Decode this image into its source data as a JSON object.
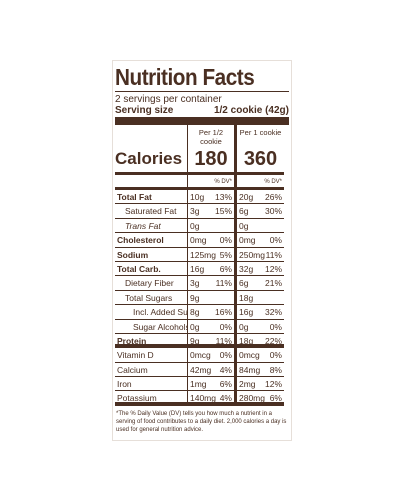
{
  "title": "Nutrition Facts",
  "servings": "2 servings per container",
  "serving_size_label": "Serving size",
  "serving_size": "1/2 cookie (42g)",
  "columns": [
    "Per 1/2 cookie",
    "Per 1 cookie"
  ],
  "calories_label": "Calories",
  "calories": [
    180,
    360
  ],
  "dv_header": "% DV*",
  "sections": [
    [
      {
        "name": "Total Fat",
        "indent": 0,
        "bold": true,
        "cells": [
          [
            "10g",
            "13%"
          ],
          [
            "20g",
            "26%"
          ]
        ]
      },
      {
        "name": "Saturated Fat",
        "indent": 1,
        "bold": false,
        "cells": [
          [
            "3g",
            "15%"
          ],
          [
            "6g",
            "30%"
          ]
        ]
      },
      {
        "name": "Trans Fat",
        "indent": 1,
        "bold": false,
        "italic": true,
        "cells": [
          [
            "0g",
            null
          ],
          [
            "0g",
            null
          ]
        ]
      },
      {
        "name": "Cholesterol",
        "indent": 0,
        "bold": true,
        "cells": [
          [
            "0mg",
            "0%"
          ],
          [
            "0mg",
            "0%"
          ]
        ]
      },
      {
        "name": "Sodium",
        "indent": 0,
        "bold": true,
        "cells": [
          [
            "125mg",
            "5%"
          ],
          [
            "250mg",
            "11%"
          ]
        ]
      },
      {
        "name": "Total Carb.",
        "indent": 0,
        "bold": true,
        "cells": [
          [
            "16g",
            "6%"
          ],
          [
            "32g",
            "12%"
          ]
        ]
      },
      {
        "name": "Dietary Fiber",
        "indent": 1,
        "bold": false,
        "cells": [
          [
            "3g",
            "11%"
          ],
          [
            "6g",
            "21%"
          ]
        ]
      },
      {
        "name": "Total Sugars",
        "indent": 1,
        "bold": false,
        "cells": [
          [
            "9g",
            null
          ],
          [
            "18g",
            null
          ]
        ]
      },
      {
        "name": "Incl. Added Sugars",
        "indent": 2,
        "bold": false,
        "cells": [
          [
            "8g",
            "16%"
          ],
          [
            "16g",
            "32%"
          ]
        ]
      },
      {
        "name": "Sugar Alcohols",
        "indent": 2,
        "bold": false,
        "cells": [
          [
            "0g",
            "0%"
          ],
          [
            "0g",
            "0%"
          ]
        ]
      },
      {
        "name": "Protein",
        "indent": 0,
        "bold": true,
        "cells": [
          [
            "9g",
            "11%"
          ],
          [
            "18g",
            "22%"
          ]
        ]
      }
    ],
    [
      {
        "name": "Vitamin D",
        "indent": 0,
        "bold": false,
        "cells": [
          [
            "0mcg",
            "0%"
          ],
          [
            "0mcg",
            "0%"
          ]
        ]
      },
      {
        "name": "Calcium",
        "indent": 0,
        "bold": false,
        "cells": [
          [
            "42mg",
            "4%"
          ],
          [
            "84mg",
            "8%"
          ]
        ]
      },
      {
        "name": "Iron",
        "indent": 0,
        "bold": false,
        "cells": [
          [
            "1mg",
            "6%"
          ],
          [
            "2mg",
            "12%"
          ]
        ]
      },
      {
        "name": "Potassium",
        "indent": 0,
        "bold": false,
        "cells": [
          [
            "140mg",
            "4%"
          ],
          [
            "280mg",
            "6%"
          ]
        ]
      }
    ]
  ],
  "footnote": "*The % Daily Value (DV) tells you how much a nutrient in a serving of food contributes to a daily diet. 2,000 calories a day is used for general nutrition advice."
}
